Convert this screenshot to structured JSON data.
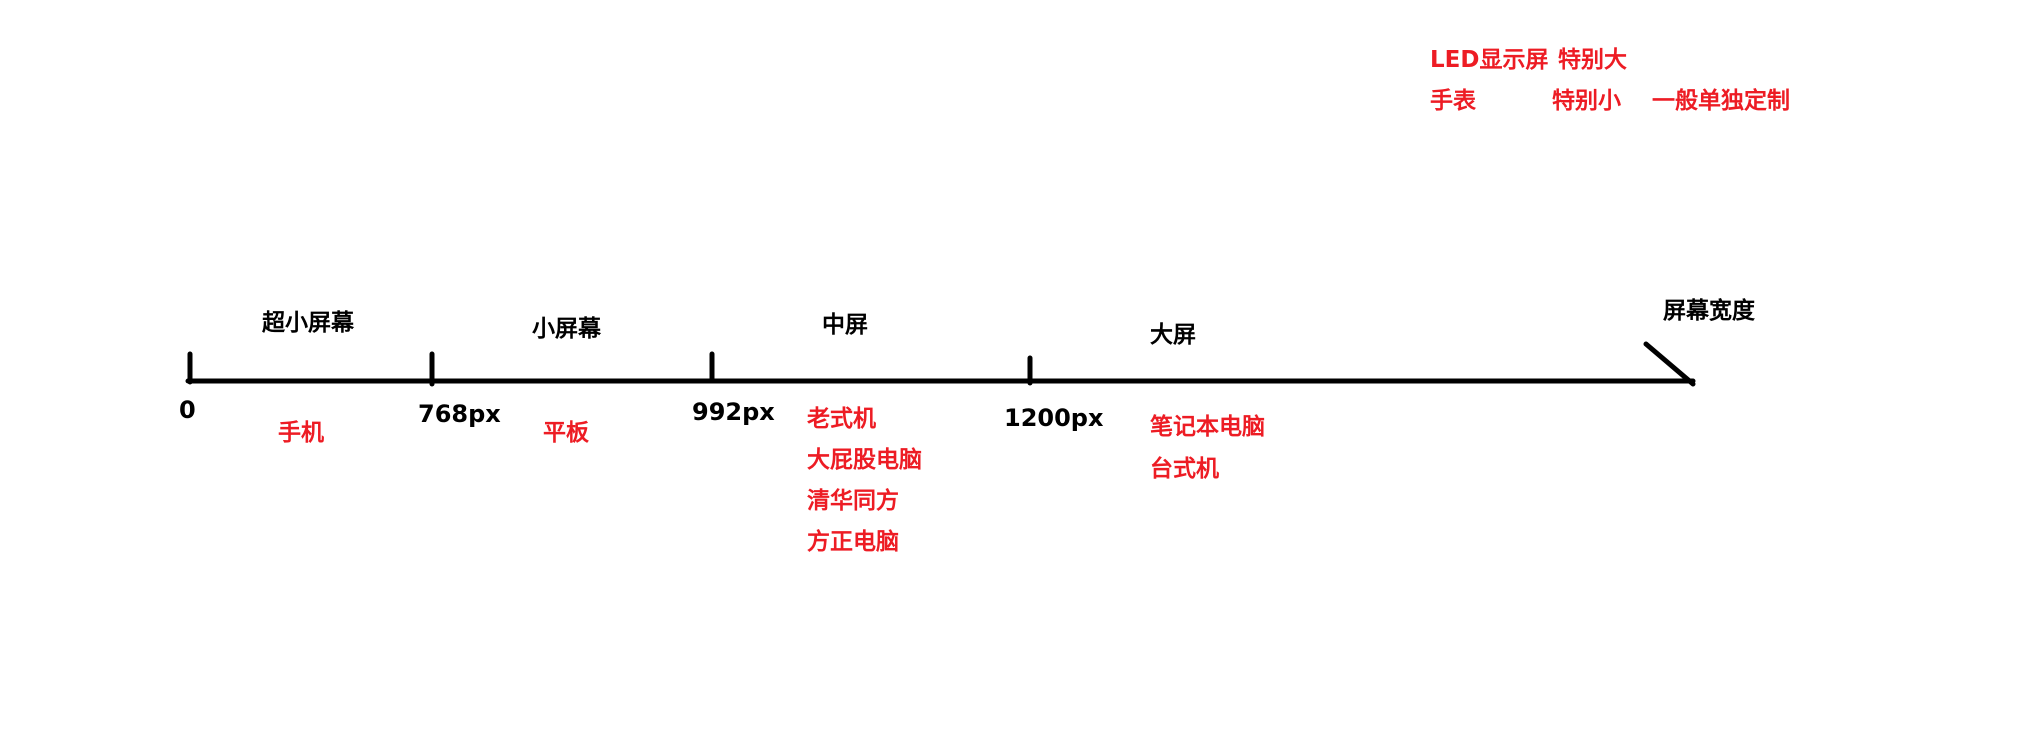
{
  "colors": {
    "line": "#000000",
    "annotation": "#ed1c24",
    "text": "#000000",
    "background": "#ffffff"
  },
  "axis": {
    "title": "屏幕宽度",
    "ticks": [
      "0",
      "768px",
      "992px",
      "1200px"
    ]
  },
  "segments": [
    {
      "name": "超小屏幕",
      "devices": [
        "手机"
      ]
    },
    {
      "name": "小屏幕",
      "devices": [
        "平板"
      ]
    },
    {
      "name": "中屏",
      "devices": [
        "老式机",
        "大屁股电脑",
        "清华同方",
        "方正电脑"
      ]
    },
    {
      "name": "大屏",
      "devices": [
        "笔记本电脑",
        "台式机"
      ]
    }
  ],
  "extra_notes": {
    "row1": [
      "LED显示屏",
      "特别大"
    ],
    "row2": [
      "手表",
      "特别小",
      "一般单独定制"
    ]
  }
}
